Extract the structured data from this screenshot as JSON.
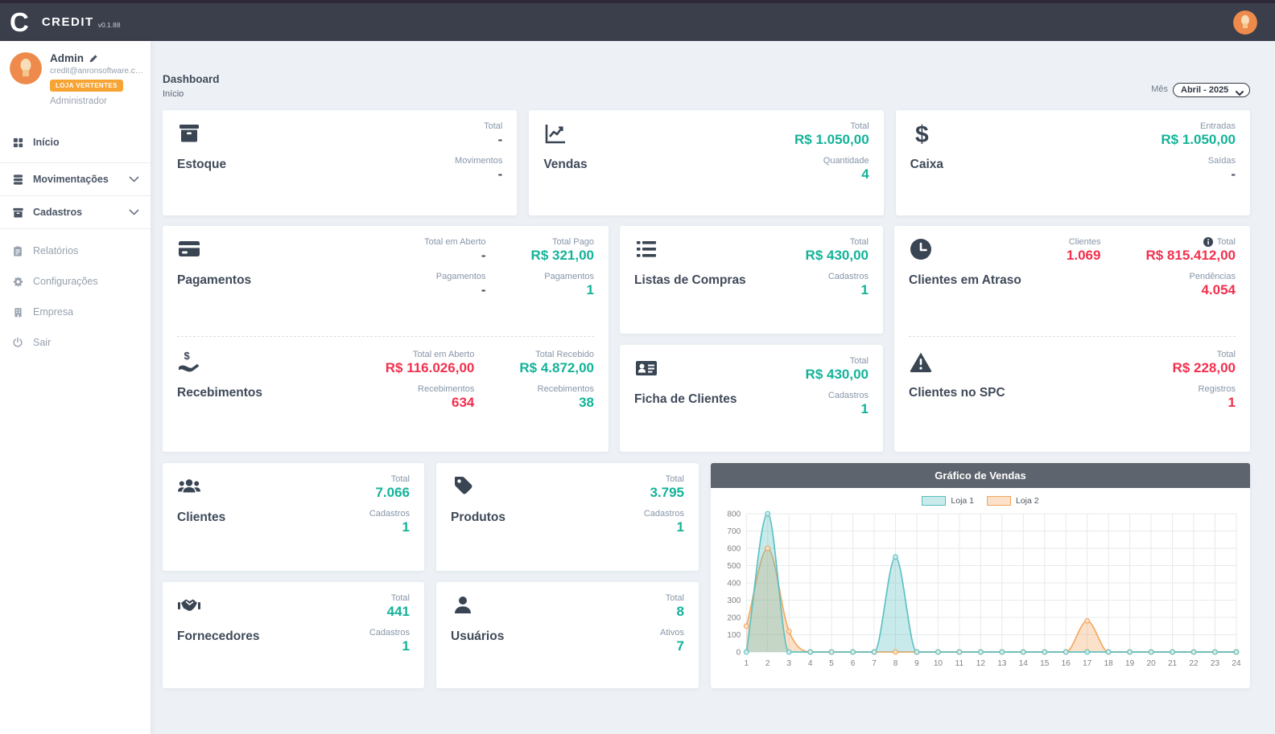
{
  "navbar": {
    "logo_letter": "C",
    "brand": "CREDIT",
    "version": "v0.1.88"
  },
  "sidebar": {
    "user": {
      "name": "Admin",
      "email": "credit@anronsoftware.co...",
      "badge": "LOJA VERTENTES",
      "role": "Administrador"
    },
    "items": [
      {
        "label": "Início"
      },
      {
        "label": "Movimentações"
      },
      {
        "label": "Cadastros"
      },
      {
        "label": "Relatórios"
      },
      {
        "label": "Configurações"
      },
      {
        "label": "Empresa"
      },
      {
        "label": "Sair"
      }
    ]
  },
  "breadcrumb": {
    "title": "Dashboard",
    "subtitle": "Início"
  },
  "filters": {
    "month_label": "Mês",
    "month_value": "Abril - 2025"
  },
  "colors": {
    "accent_teal": "#13b399",
    "accent_red": "#f1304e",
    "badge_orange": "#f7a434",
    "navbar": "#3a3f4b",
    "chart_header": "#5d646d"
  },
  "cards": {
    "estoque": {
      "title": "Estoque",
      "stats": [
        {
          "label": "Total",
          "value": "-"
        },
        {
          "label": "Movimentos",
          "value": "-"
        }
      ]
    },
    "vendas": {
      "title": "Vendas",
      "stats": [
        {
          "label": "Total",
          "value": "R$ 1.050,00"
        },
        {
          "label": "Quantidade",
          "value": "4"
        }
      ]
    },
    "caixa": {
      "title": "Caixa",
      "stats": [
        {
          "label": "Entradas",
          "value": "R$ 1.050,00"
        },
        {
          "label": "Saídas",
          "value": "-"
        }
      ]
    },
    "pagamentos": {
      "title": "Pagamentos",
      "mid": [
        {
          "label": "Total em Aberto",
          "value": "-"
        },
        {
          "label": "Pagamentos",
          "value": "-"
        }
      ],
      "right": [
        {
          "label": "Total Pago",
          "value": "R$ 321,00"
        },
        {
          "label": "Pagamentos",
          "value": "1"
        }
      ]
    },
    "recebimentos": {
      "title": "Recebimentos",
      "mid": [
        {
          "label": "Total em Aberto",
          "value": "R$ 116.026,00"
        },
        {
          "label": "Recebimentos",
          "value": "634"
        }
      ],
      "right": [
        {
          "label": "Total Recebido",
          "value": "R$ 4.872,00"
        },
        {
          "label": "Recebimentos",
          "value": "38"
        }
      ]
    },
    "listas": {
      "title": "Listas de Compras",
      "stats": [
        {
          "label": "Total",
          "value": "R$ 430,00"
        },
        {
          "label": "Cadastros",
          "value": "1"
        }
      ]
    },
    "ficha": {
      "title": "Ficha de Clientes",
      "stats": [
        {
          "label": "Total",
          "value": "R$ 430,00"
        },
        {
          "label": "Cadastros",
          "value": "1"
        }
      ]
    },
    "atraso": {
      "title": "Clientes em Atraso",
      "mid": [
        {
          "label": "Clientes",
          "value": "1.069"
        }
      ],
      "right": [
        {
          "label": "Total",
          "value": "R$ 815.412,00"
        },
        {
          "label": "Pendências",
          "value": "4.054"
        }
      ]
    },
    "spc": {
      "title": "Clientes no SPC",
      "stats": [
        {
          "label": "Total",
          "value": "R$ 228,00"
        },
        {
          "label": "Registros",
          "value": "1"
        }
      ]
    },
    "clientes": {
      "title": "Clientes",
      "stats": [
        {
          "label": "Total",
          "value": "7.066"
        },
        {
          "label": "Cadastros",
          "value": "1"
        }
      ]
    },
    "produtos": {
      "title": "Produtos",
      "stats": [
        {
          "label": "Total",
          "value": "3.795"
        },
        {
          "label": "Cadastros",
          "value": "1"
        }
      ]
    },
    "fornecedores": {
      "title": "Fornecedores",
      "stats": [
        {
          "label": "Total",
          "value": "441"
        },
        {
          "label": "Cadastros",
          "value": "1"
        }
      ]
    },
    "usuarios": {
      "title": "Usuários",
      "stats": [
        {
          "label": "Total",
          "value": "8"
        },
        {
          "label": "Ativos",
          "value": "7"
        }
      ]
    }
  },
  "chart_data": {
    "type": "line",
    "title": "Gráfico de Vendas",
    "x": [
      1,
      2,
      3,
      4,
      5,
      6,
      7,
      8,
      9,
      10,
      11,
      12,
      13,
      14,
      15,
      16,
      17,
      18,
      19,
      20,
      21,
      22,
      23,
      24
    ],
    "ylim": [
      0,
      800
    ],
    "ytick": 100,
    "grid": true,
    "legend_position": "top",
    "smooth": true,
    "series": [
      {
        "name": "Loja 1",
        "color": "#57bfc0",
        "fill": "rgba(87,191,192,0.33)",
        "point_fill": "#d8efef",
        "values": [
          0,
          800,
          0,
          0,
          0,
          0,
          0,
          550,
          0,
          0,
          0,
          0,
          0,
          0,
          0,
          0,
          0,
          0,
          0,
          0,
          0,
          0,
          0,
          0
        ]
      },
      {
        "name": "Loja 2",
        "color": "#f3a45c",
        "fill": "rgba(243,164,92,0.33)",
        "point_fill": "#fde8d0",
        "values": [
          150,
          600,
          120,
          0,
          0,
          0,
          0,
          0,
          0,
          0,
          0,
          0,
          0,
          0,
          0,
          0,
          180,
          0,
          0,
          0,
          0,
          0,
          0,
          0
        ]
      }
    ]
  }
}
